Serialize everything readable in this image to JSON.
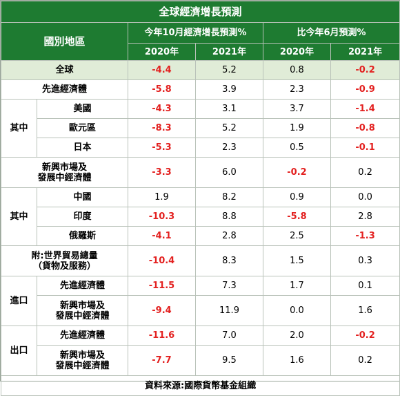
{
  "title": "全球經濟增長預測",
  "header": {
    "region": "國別地區",
    "group_oct": "今年10月經濟增長預測%",
    "group_june": "比今年6月預測%",
    "years": [
      "2020年",
      "2021年",
      "2020年",
      "2021年"
    ]
  },
  "rows": [
    {
      "group": "",
      "label": "全球",
      "values": [
        "-4.4",
        "5.2",
        "0.8",
        "-0.2"
      ]
    },
    {
      "group": "",
      "label": "先進經濟體",
      "values": [
        "-5.8",
        "3.9",
        "2.3",
        "-0.9"
      ]
    },
    {
      "group": "其中",
      "label": "美國",
      "values": [
        "-4.3",
        "3.1",
        "3.7",
        "-1.4"
      ]
    },
    {
      "group": "其中",
      "label": "歐元區",
      "values": [
        "-8.3",
        "5.2",
        "1.9",
        "-0.8"
      ]
    },
    {
      "group": "其中",
      "label": "日本",
      "values": [
        "-5.3",
        "2.3",
        "0.5",
        "-0.1"
      ]
    },
    {
      "group": "",
      "label": "新興市場及\n發展中經濟體",
      "values": [
        "-3.3",
        "6.0",
        "-0.2",
        "0.2"
      ]
    },
    {
      "group": "其中",
      "label": "中國",
      "values": [
        "1.9",
        "8.2",
        "0.9",
        "0.0"
      ]
    },
    {
      "group": "其中",
      "label": "印度",
      "values": [
        "-10.3",
        "8.8",
        "-5.8",
        "2.8"
      ]
    },
    {
      "group": "其中",
      "label": "俄羅斯",
      "values": [
        "-4.1",
        "2.8",
        "2.5",
        "-1.3"
      ]
    },
    {
      "group": "",
      "label": "附:世界貿易總量\n（貨物及服務）",
      "values": [
        "-10.4",
        "8.3",
        "1.5",
        "0.3"
      ]
    },
    {
      "group": "進口",
      "label": "先進經濟體",
      "values": [
        "-11.5",
        "7.3",
        "1.7",
        "0.1"
      ]
    },
    {
      "group": "進口",
      "label": "新興市場及\n發展中經濟體",
      "values": [
        "-9.4",
        "11.9",
        "0.0",
        "1.6"
      ]
    },
    {
      "group": "出口",
      "label": "先進經濟體",
      "values": [
        "-11.6",
        "7.0",
        "2.0",
        "-0.2"
      ]
    },
    {
      "group": "出口",
      "label": "新興市場及\n發展中經濟體",
      "values": [
        "-7.7",
        "9.5",
        "1.6",
        "0.2"
      ]
    }
  ],
  "source": "資料來源:國際貨幣基金組織",
  "colors": {
    "header_bg": "#1e7b31",
    "highlight_row_bg": "#e0ecd7",
    "negative_text": "#e3201f"
  }
}
